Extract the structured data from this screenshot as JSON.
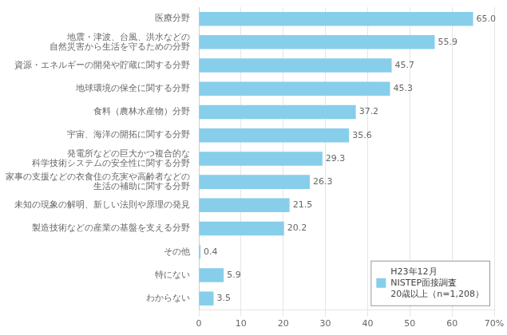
{
  "chart_data": {
    "type": "bar",
    "orientation": "horizontal",
    "categories": [
      "医療分野",
      "地震・津波、台風、洪水などの\n自然災害から生活を守るための分野",
      "資源・エネルギーの開発や貯蔵に関する分野",
      "地球環境の保全に関する分野",
      "食料（農林水産物）分野",
      "宇宙、海洋の開拓に関する分野",
      "発電所などの巨大かつ複合的な\n科学技術システムの安全性に関する分野",
      "家事の支援などの衣食住の充実や高齢者などの\n生活の補助に関する分野",
      "未知の現象の解明、新しい法則や原理の発見",
      "製造技術などの産業の基盤を支える分野",
      "その他",
      "特にない",
      "わからない"
    ],
    "series": [
      {
        "name": "H23年12月\nNISTEP面接調査\n20歳以上（n=1,208）",
        "color": "#87CEEB",
        "values": [
          65.0,
          55.9,
          45.7,
          45.3,
          37.2,
          35.6,
          29.3,
          26.3,
          21.5,
          20.2,
          0.4,
          5.9,
          3.5
        ],
        "value_labels": [
          "65.0",
          "55.9",
          "45.7",
          "45.3",
          "37.2",
          "35.6",
          "29.3",
          "26.3",
          "21.5",
          "20.2",
          "0.4",
          "5.9",
          "3.5"
        ]
      }
    ],
    "xlim": [
      0,
      70
    ],
    "xticks": [
      0,
      10,
      20,
      30,
      40,
      50,
      60,
      {
        "value": 70,
        "label": "70%"
      }
    ],
    "grid": true,
    "legend": "lower right",
    "data_labels": true
  }
}
